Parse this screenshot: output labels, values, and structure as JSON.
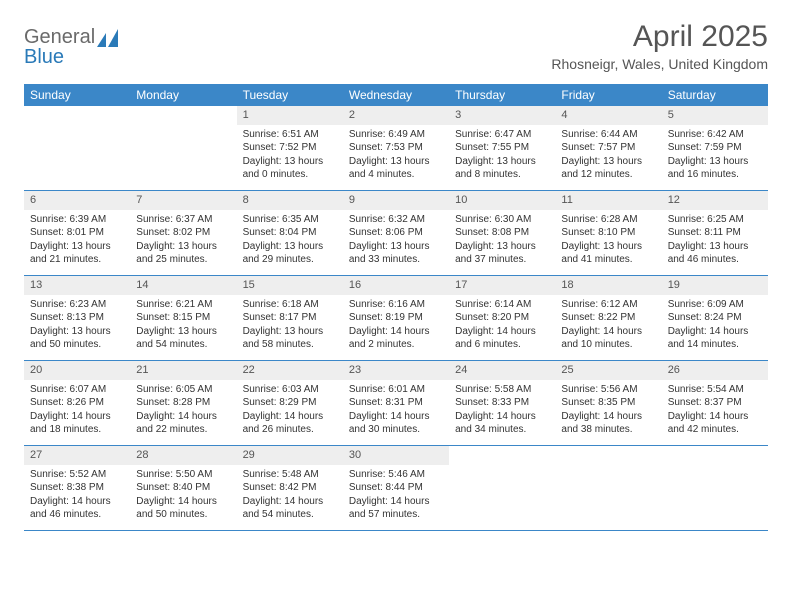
{
  "brand": {
    "name_part1": "General",
    "name_part2": "Blue"
  },
  "title": "April 2025",
  "location": "Rhosneigr, Wales, United Kingdom",
  "colors": {
    "header_bg": "#3b87c8",
    "header_text": "#ffffff",
    "daynum_bg": "#eeeeee",
    "border": "#3b87c8",
    "body_text": "#333333",
    "title_text": "#555555",
    "logo_gray": "#6a6a6a",
    "logo_blue": "#2a7ab8",
    "page_bg": "#ffffff"
  },
  "day_headers": [
    "Sunday",
    "Monday",
    "Tuesday",
    "Wednesday",
    "Thursday",
    "Friday",
    "Saturday"
  ],
  "weeks": [
    [
      {
        "empty": true
      },
      {
        "empty": true
      },
      {
        "num": "1",
        "sunrise": "Sunrise: 6:51 AM",
        "sunset": "Sunset: 7:52 PM",
        "day1": "Daylight: 13 hours",
        "day2": "and 0 minutes."
      },
      {
        "num": "2",
        "sunrise": "Sunrise: 6:49 AM",
        "sunset": "Sunset: 7:53 PM",
        "day1": "Daylight: 13 hours",
        "day2": "and 4 minutes."
      },
      {
        "num": "3",
        "sunrise": "Sunrise: 6:47 AM",
        "sunset": "Sunset: 7:55 PM",
        "day1": "Daylight: 13 hours",
        "day2": "and 8 minutes."
      },
      {
        "num": "4",
        "sunrise": "Sunrise: 6:44 AM",
        "sunset": "Sunset: 7:57 PM",
        "day1": "Daylight: 13 hours",
        "day2": "and 12 minutes."
      },
      {
        "num": "5",
        "sunrise": "Sunrise: 6:42 AM",
        "sunset": "Sunset: 7:59 PM",
        "day1": "Daylight: 13 hours",
        "day2": "and 16 minutes."
      }
    ],
    [
      {
        "num": "6",
        "sunrise": "Sunrise: 6:39 AM",
        "sunset": "Sunset: 8:01 PM",
        "day1": "Daylight: 13 hours",
        "day2": "and 21 minutes."
      },
      {
        "num": "7",
        "sunrise": "Sunrise: 6:37 AM",
        "sunset": "Sunset: 8:02 PM",
        "day1": "Daylight: 13 hours",
        "day2": "and 25 minutes."
      },
      {
        "num": "8",
        "sunrise": "Sunrise: 6:35 AM",
        "sunset": "Sunset: 8:04 PM",
        "day1": "Daylight: 13 hours",
        "day2": "and 29 minutes."
      },
      {
        "num": "9",
        "sunrise": "Sunrise: 6:32 AM",
        "sunset": "Sunset: 8:06 PM",
        "day1": "Daylight: 13 hours",
        "day2": "and 33 minutes."
      },
      {
        "num": "10",
        "sunrise": "Sunrise: 6:30 AM",
        "sunset": "Sunset: 8:08 PM",
        "day1": "Daylight: 13 hours",
        "day2": "and 37 minutes."
      },
      {
        "num": "11",
        "sunrise": "Sunrise: 6:28 AM",
        "sunset": "Sunset: 8:10 PM",
        "day1": "Daylight: 13 hours",
        "day2": "and 41 minutes."
      },
      {
        "num": "12",
        "sunrise": "Sunrise: 6:25 AM",
        "sunset": "Sunset: 8:11 PM",
        "day1": "Daylight: 13 hours",
        "day2": "and 46 minutes."
      }
    ],
    [
      {
        "num": "13",
        "sunrise": "Sunrise: 6:23 AM",
        "sunset": "Sunset: 8:13 PM",
        "day1": "Daylight: 13 hours",
        "day2": "and 50 minutes."
      },
      {
        "num": "14",
        "sunrise": "Sunrise: 6:21 AM",
        "sunset": "Sunset: 8:15 PM",
        "day1": "Daylight: 13 hours",
        "day2": "and 54 minutes."
      },
      {
        "num": "15",
        "sunrise": "Sunrise: 6:18 AM",
        "sunset": "Sunset: 8:17 PM",
        "day1": "Daylight: 13 hours",
        "day2": "and 58 minutes."
      },
      {
        "num": "16",
        "sunrise": "Sunrise: 6:16 AM",
        "sunset": "Sunset: 8:19 PM",
        "day1": "Daylight: 14 hours",
        "day2": "and 2 minutes."
      },
      {
        "num": "17",
        "sunrise": "Sunrise: 6:14 AM",
        "sunset": "Sunset: 8:20 PM",
        "day1": "Daylight: 14 hours",
        "day2": "and 6 minutes."
      },
      {
        "num": "18",
        "sunrise": "Sunrise: 6:12 AM",
        "sunset": "Sunset: 8:22 PM",
        "day1": "Daylight: 14 hours",
        "day2": "and 10 minutes."
      },
      {
        "num": "19",
        "sunrise": "Sunrise: 6:09 AM",
        "sunset": "Sunset: 8:24 PM",
        "day1": "Daylight: 14 hours",
        "day2": "and 14 minutes."
      }
    ],
    [
      {
        "num": "20",
        "sunrise": "Sunrise: 6:07 AM",
        "sunset": "Sunset: 8:26 PM",
        "day1": "Daylight: 14 hours",
        "day2": "and 18 minutes."
      },
      {
        "num": "21",
        "sunrise": "Sunrise: 6:05 AM",
        "sunset": "Sunset: 8:28 PM",
        "day1": "Daylight: 14 hours",
        "day2": "and 22 minutes."
      },
      {
        "num": "22",
        "sunrise": "Sunrise: 6:03 AM",
        "sunset": "Sunset: 8:29 PM",
        "day1": "Daylight: 14 hours",
        "day2": "and 26 minutes."
      },
      {
        "num": "23",
        "sunrise": "Sunrise: 6:01 AM",
        "sunset": "Sunset: 8:31 PM",
        "day1": "Daylight: 14 hours",
        "day2": "and 30 minutes."
      },
      {
        "num": "24",
        "sunrise": "Sunrise: 5:58 AM",
        "sunset": "Sunset: 8:33 PM",
        "day1": "Daylight: 14 hours",
        "day2": "and 34 minutes."
      },
      {
        "num": "25",
        "sunrise": "Sunrise: 5:56 AM",
        "sunset": "Sunset: 8:35 PM",
        "day1": "Daylight: 14 hours",
        "day2": "and 38 minutes."
      },
      {
        "num": "26",
        "sunrise": "Sunrise: 5:54 AM",
        "sunset": "Sunset: 8:37 PM",
        "day1": "Daylight: 14 hours",
        "day2": "and 42 minutes."
      }
    ],
    [
      {
        "num": "27",
        "sunrise": "Sunrise: 5:52 AM",
        "sunset": "Sunset: 8:38 PM",
        "day1": "Daylight: 14 hours",
        "day2": "and 46 minutes."
      },
      {
        "num": "28",
        "sunrise": "Sunrise: 5:50 AM",
        "sunset": "Sunset: 8:40 PM",
        "day1": "Daylight: 14 hours",
        "day2": "and 50 minutes."
      },
      {
        "num": "29",
        "sunrise": "Sunrise: 5:48 AM",
        "sunset": "Sunset: 8:42 PM",
        "day1": "Daylight: 14 hours",
        "day2": "and 54 minutes."
      },
      {
        "num": "30",
        "sunrise": "Sunrise: 5:46 AM",
        "sunset": "Sunset: 8:44 PM",
        "day1": "Daylight: 14 hours",
        "day2": "and 57 minutes."
      },
      {
        "empty": true
      },
      {
        "empty": true
      },
      {
        "empty": true
      }
    ]
  ]
}
